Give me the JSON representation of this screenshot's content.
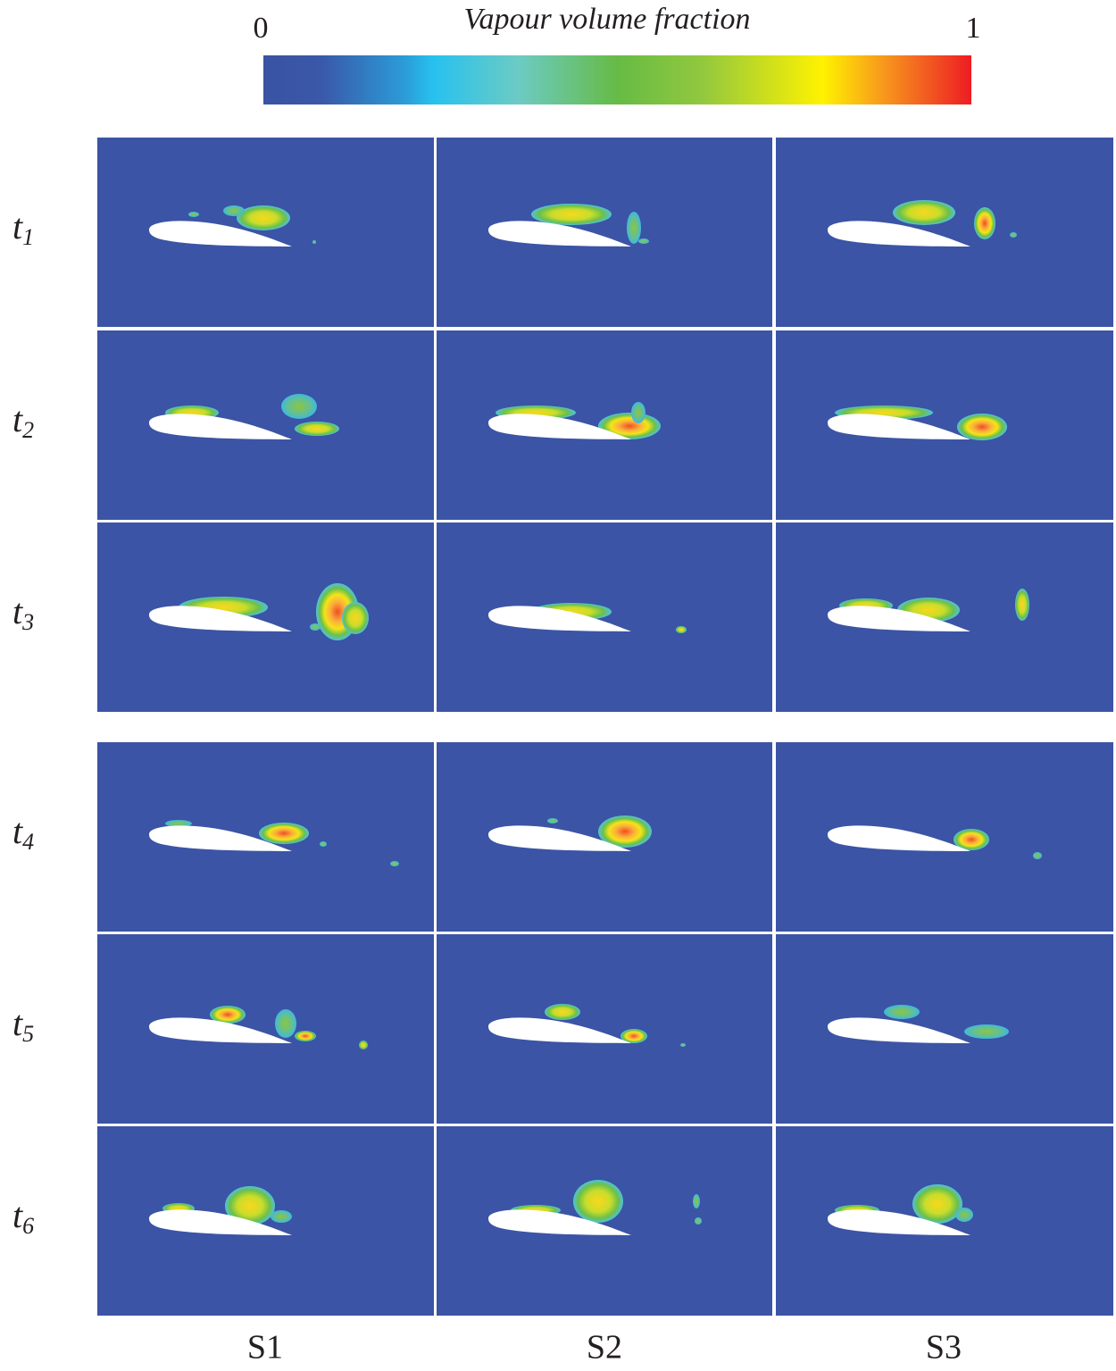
{
  "colorbar": {
    "title": "Vapour volume fraction",
    "min": 0,
    "max": 1
  },
  "rows": [
    {
      "label": "t",
      "subscript": "1"
    },
    {
      "label": "t",
      "subscript": "2"
    },
    {
      "label": "t",
      "subscript": "3"
    },
    {
      "label": "t",
      "subscript": "4"
    },
    {
      "label": "t",
      "subscript": "5"
    },
    {
      "label": "t",
      "subscript": "6"
    }
  ],
  "columns": [
    "S1",
    "S2",
    "S3"
  ]
}
